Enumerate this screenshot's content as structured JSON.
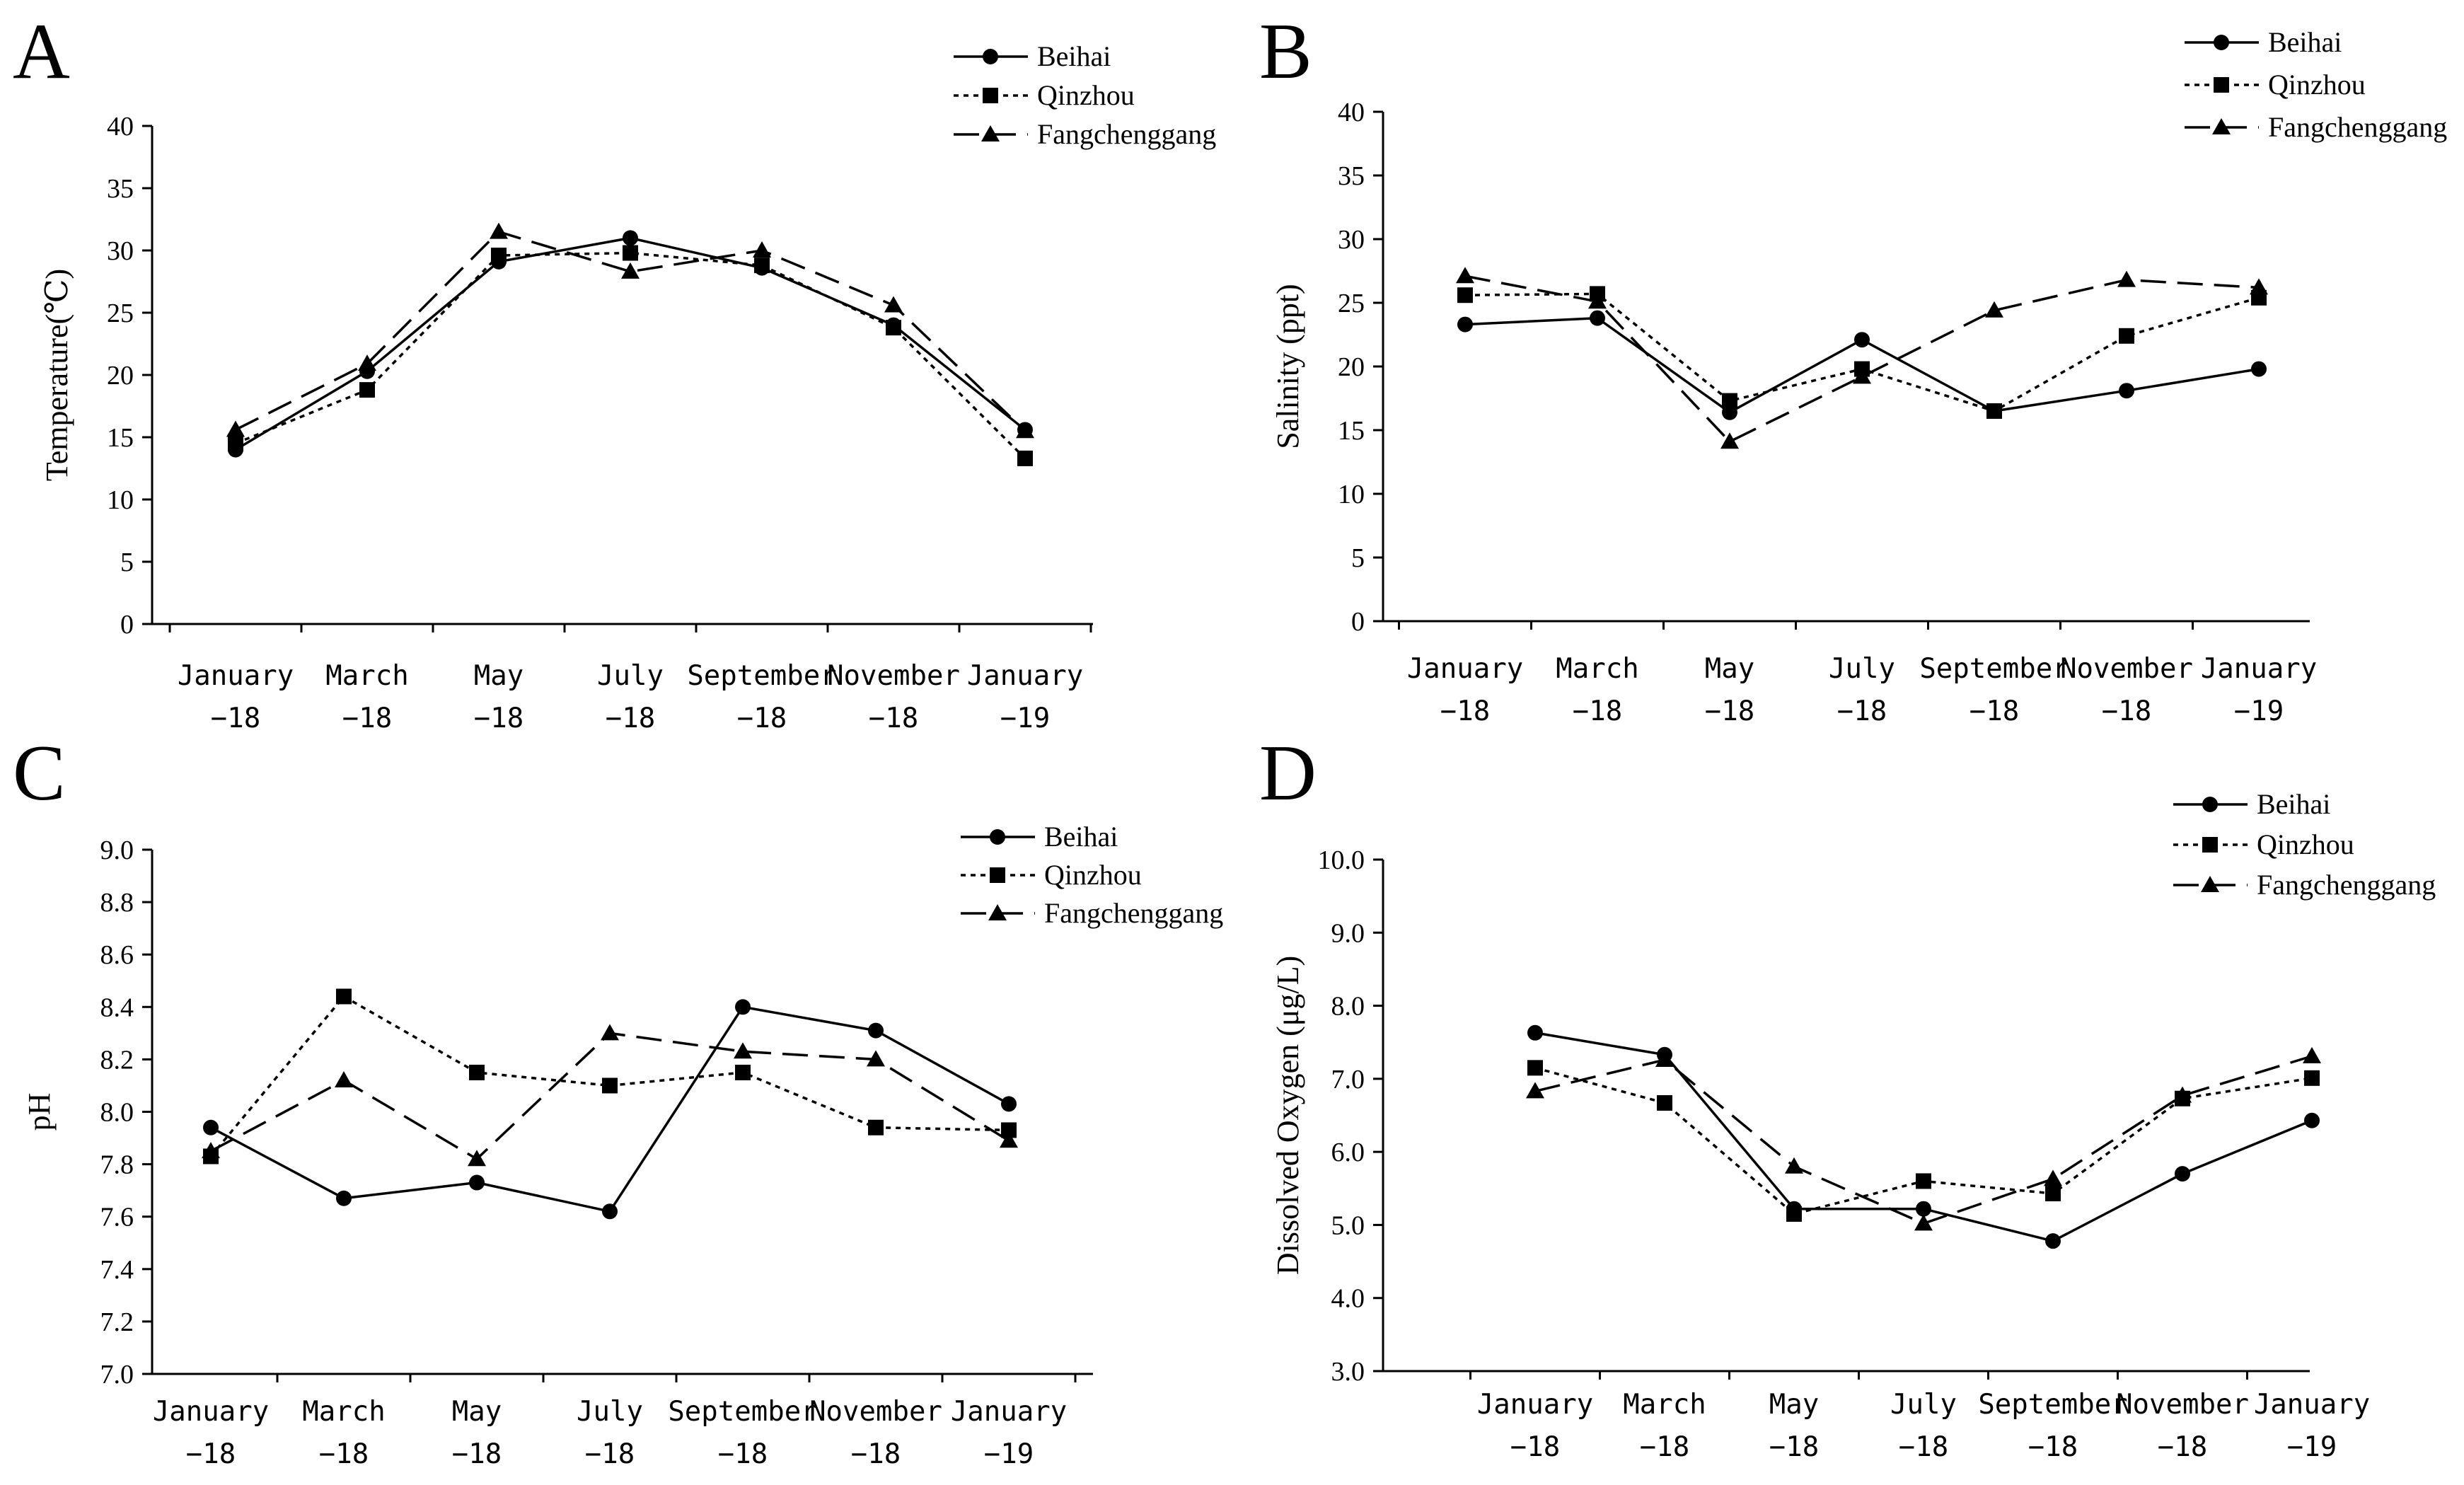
{
  "series_names": [
    "Beihai",
    "Qinzhou",
    "Fangchenggang"
  ],
  "chart_data": [
    {
      "panel": "A",
      "type": "line",
      "ylabel": "Temperature(℃)",
      "ylim": [
        0,
        40
      ],
      "ytick_step": 5,
      "ytick_decimals": 0,
      "x_categories": [
        [
          "January",
          "−18"
        ],
        [
          "March",
          "−18"
        ],
        [
          "May",
          "−18"
        ],
        [
          "July",
          "−18"
        ],
        [
          "September",
          "−18"
        ],
        [
          "November",
          "−18"
        ],
        [
          "January",
          "−19"
        ]
      ],
      "series": [
        {
          "name": "Beihai",
          "values": [
            14.0,
            20.3,
            29.1,
            31.0,
            28.6,
            24.0,
            15.6
          ]
        },
        {
          "name": "Qinzhou",
          "values": [
            14.5,
            18.8,
            29.6,
            29.8,
            28.8,
            23.8,
            13.3
          ]
        },
        {
          "name": "Fangchenggang",
          "values": [
            15.6,
            20.9,
            31.5,
            28.3,
            30.0,
            25.6,
            15.5
          ]
        }
      ]
    },
    {
      "panel": "B",
      "type": "line",
      "ylabel": "Salinity (ppt)",
      "ylim": [
        0,
        40
      ],
      "ytick_step": 5,
      "ytick_decimals": 0,
      "x_categories": [
        [
          "January",
          "−18"
        ],
        [
          "March",
          "−18"
        ],
        [
          "May",
          "−18"
        ],
        [
          "July",
          "−18"
        ],
        [
          "September",
          "−18"
        ],
        [
          "November",
          "−18"
        ],
        [
          "January",
          "−19"
        ]
      ],
      "series": [
        {
          "name": "Beihai",
          "values": [
            23.3,
            23.8,
            16.4,
            22.1,
            16.5,
            18.1,
            19.8
          ]
        },
        {
          "name": "Qinzhou",
          "values": [
            25.6,
            25.7,
            17.3,
            19.8,
            16.5,
            22.4,
            25.4
          ]
        },
        {
          "name": "Fangchenggang",
          "values": [
            27.1,
            25.1,
            14.1,
            19.2,
            24.4,
            26.8,
            26.2
          ]
        }
      ]
    },
    {
      "panel": "C",
      "type": "line",
      "ylabel": "pH",
      "ylim": [
        7.0,
        9.0
      ],
      "ytick_step": 0.2,
      "ytick_decimals": 1,
      "x_categories": [
        [
          "January",
          "−18"
        ],
        [
          "March",
          "−18"
        ],
        [
          "May",
          "−18"
        ],
        [
          "July",
          "−18"
        ],
        [
          "September",
          "−18"
        ],
        [
          "November",
          "−18"
        ],
        [
          "January",
          "−19"
        ]
      ],
      "series": [
        {
          "name": "Beihai",
          "values": [
            7.94,
            7.67,
            7.73,
            7.62,
            8.4,
            8.31,
            8.03
          ]
        },
        {
          "name": "Qinzhou",
          "values": [
            7.83,
            8.44,
            8.15,
            8.1,
            8.15,
            7.94,
            7.93
          ]
        },
        {
          "name": "Fangchenggang",
          "values": [
            7.85,
            8.12,
            7.82,
            8.3,
            8.23,
            8.2,
            7.89
          ]
        }
      ]
    },
    {
      "panel": "D",
      "type": "line",
      "ylabel": "Dissolved Oxygen (μg/L)",
      "ylim": [
        3.0,
        10.0
      ],
      "ytick_step": 1.0,
      "ytick_decimals": 1,
      "x_categories": [
        [
          "January",
          "−18"
        ],
        [
          "March",
          "−18"
        ],
        [
          "May",
          "−18"
        ],
        [
          "July",
          "−18"
        ],
        [
          "September",
          "−18"
        ],
        [
          "November",
          "−18"
        ],
        [
          "January",
          "−19"
        ]
      ],
      "series": [
        {
          "name": "Beihai",
          "values": [
            7.63,
            7.33,
            5.22,
            5.22,
            4.78,
            5.7,
            6.43
          ]
        },
        {
          "name": "Qinzhou",
          "values": [
            7.15,
            6.67,
            5.15,
            5.6,
            5.43,
            6.73,
            7.01
          ]
        },
        {
          "name": "Fangchenggang",
          "values": [
            6.83,
            7.26,
            5.8,
            5.02,
            5.63,
            6.77,
            7.31
          ]
        }
      ]
    }
  ]
}
